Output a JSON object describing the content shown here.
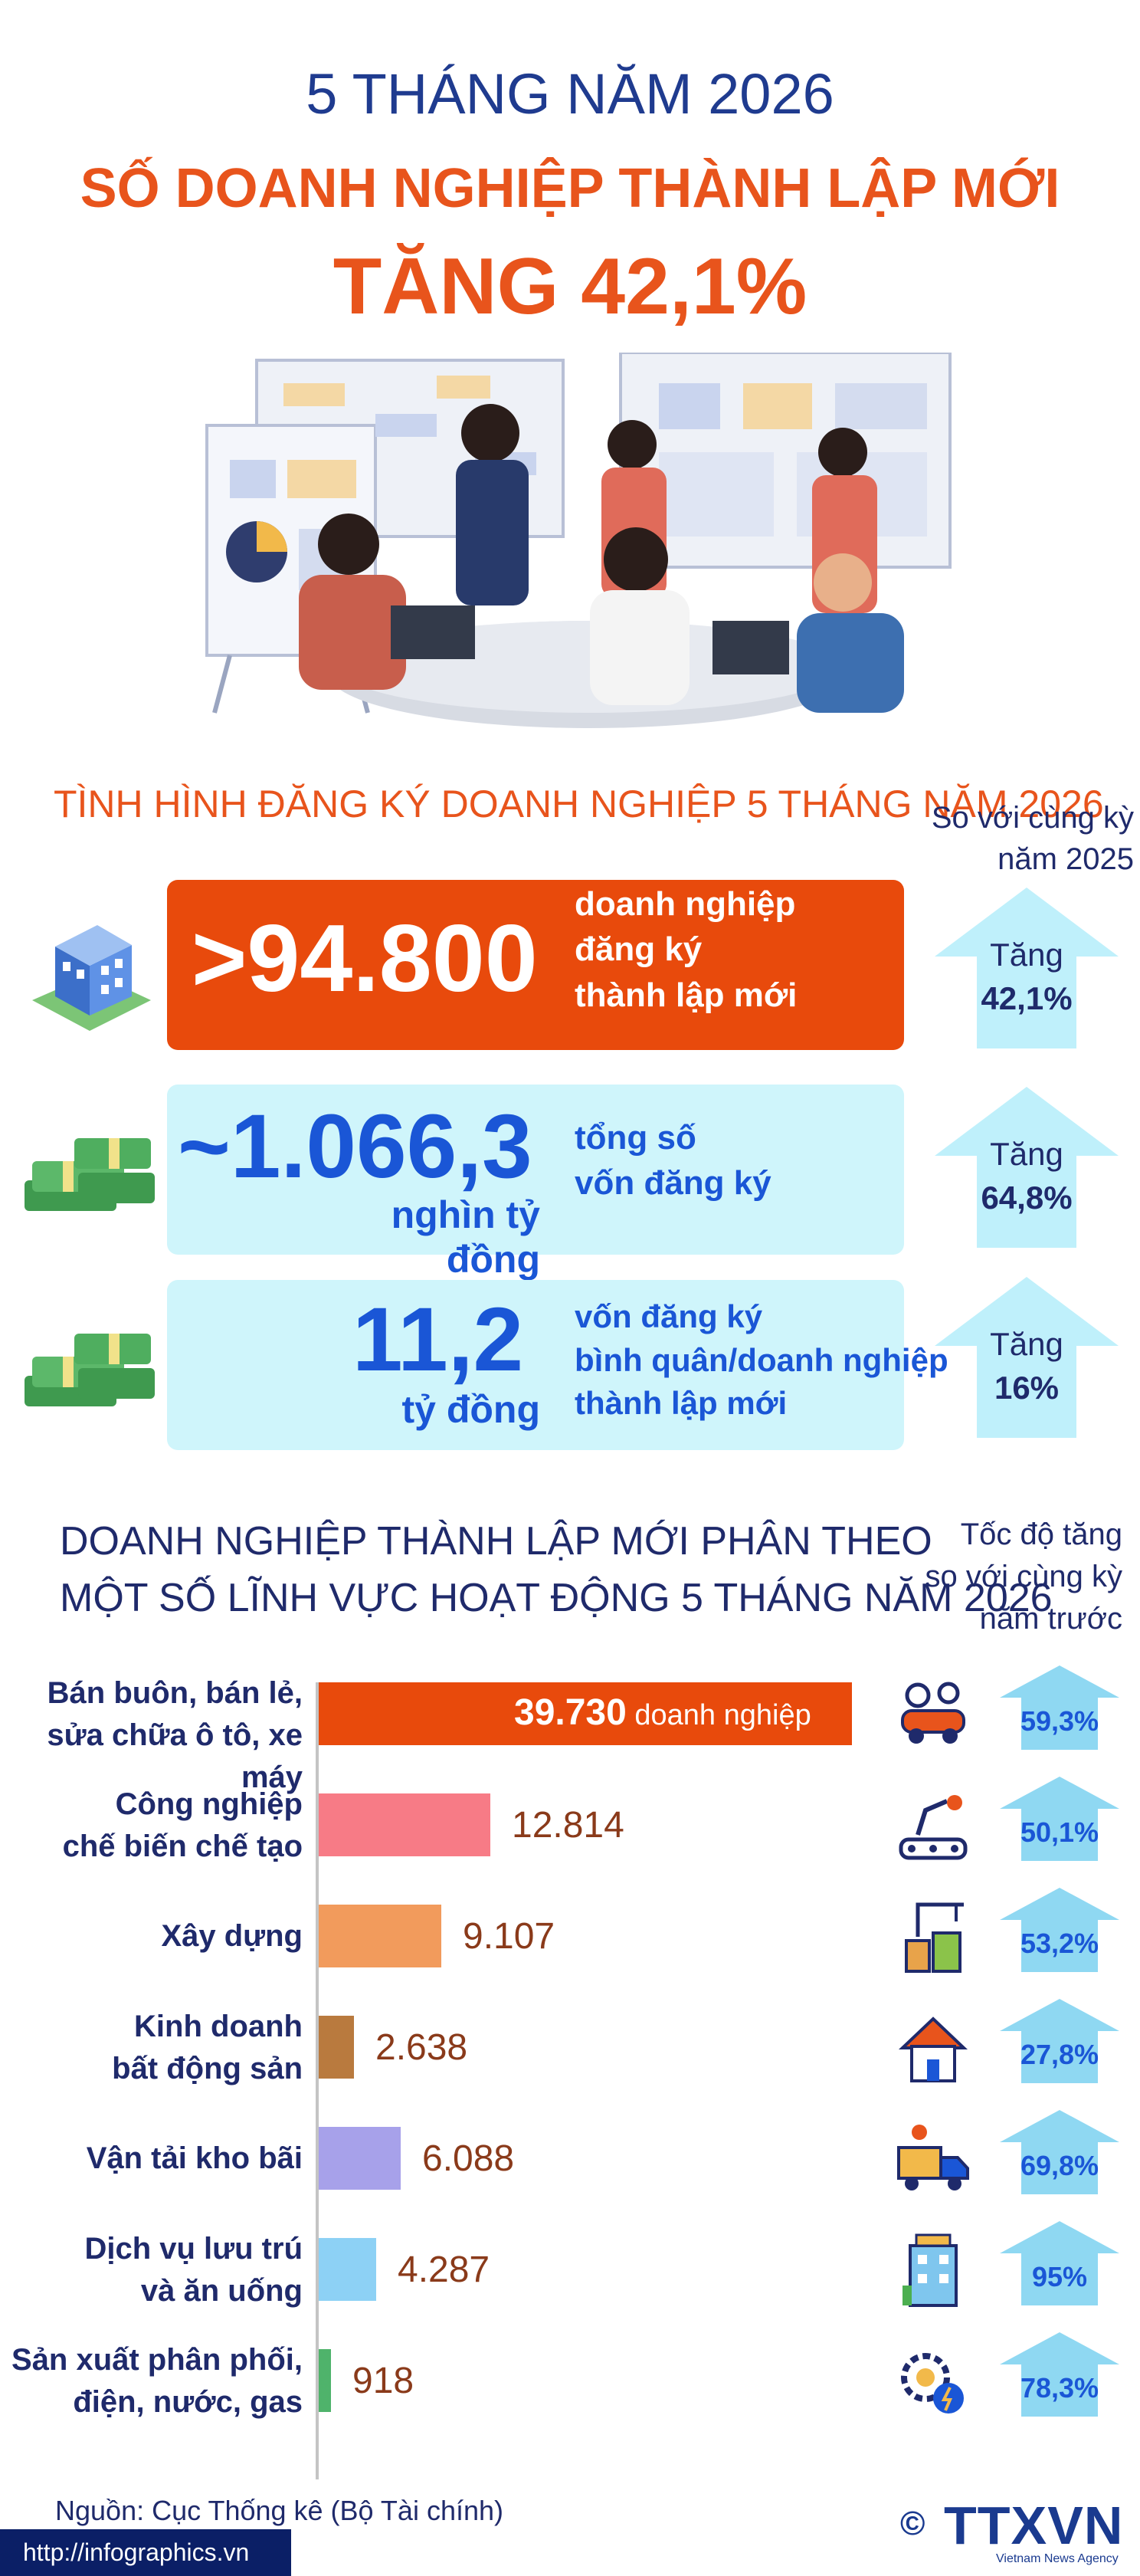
{
  "header": {
    "period": "5 THÁNG NĂM 2026",
    "title": "SỐ DOANH NGHIỆP THÀNH LẬP MỚI",
    "increase": "TĂNG 42,1%"
  },
  "registration": {
    "title": "TÌNH HÌNH ĐĂNG KÝ DOANH NGHIỆP 5 THÁNG NĂM 2026",
    "compare_line1": "So với cùng kỳ",
    "compare_line2": "năm 2025",
    "stats": [
      {
        "value": ">94.800",
        "unit": "",
        "desc": [
          "doanh nghiệp",
          "đăng ký",
          "thành lập mới"
        ],
        "change_label": "Tăng",
        "change_value": "42,1%"
      },
      {
        "value": "~1.066,3",
        "unit": "nghìn tỷ đồng",
        "desc": [
          "tổng số",
          "vốn đăng ký"
        ],
        "change_label": "Tăng",
        "change_value": "64,8%"
      },
      {
        "value": "11,2",
        "unit": "tỷ đồng",
        "desc": [
          "vốn đăng ký",
          "bình quân/doanh nghiệp",
          "thành lập mới"
        ],
        "change_label": "Tăng",
        "change_value": "16%"
      }
    ]
  },
  "sectors": {
    "title_line1": "DOANH NGHIỆP THÀNH LẬP MỚI PHÂN THEO",
    "title_line2": "MỘT SỐ LĨNH VỰC HOẠT ĐỘNG 5 THÁNG NĂM 2026",
    "rate_head": [
      "Tốc độ tăng",
      "so với cùng kỳ",
      "năm trước"
    ],
    "unit_suffix": "doanh nghiệp"
  },
  "chart_data": {
    "type": "bar",
    "categories": [
      "Bán buôn, bán lẻ, sửa chữa ô tô, xe máy",
      "Công nghiệp chế biến chế tạo",
      "Xây dựng",
      "Kinh doanh bất động sản",
      "Vận tải kho bãi",
      "Dịch vụ lưu trú và ăn uống",
      "Sản xuất phân phối, điện, nước, gas"
    ],
    "label_lines": [
      [
        "Bán buôn, bán lẻ,",
        "sửa chữa ô tô, xe máy"
      ],
      [
        "Công nghiệp",
        "chế biến chế tạo"
      ],
      [
        "Xây dựng"
      ],
      [
        "Kinh doanh",
        "bất động sản"
      ],
      [
        "Vận tải kho bãi"
      ],
      [
        "Dịch vụ lưu trú",
        "và ăn uống"
      ],
      [
        "Sản xuất phân phối,",
        "điện, nước, gas"
      ]
    ],
    "values": [
      39730,
      12814,
      9107,
      2638,
      6088,
      4287,
      918
    ],
    "value_labels": [
      "39.730",
      "12.814",
      "9.107",
      "2.638",
      "6.088",
      "4.287",
      "918"
    ],
    "growth": [
      "59,3%",
      "50,1%",
      "53,2%",
      "27,8%",
      "69,8%",
      "95%",
      "78,3%"
    ],
    "colors": [
      "#e84a0c",
      "#f77b86",
      "#f29b5c",
      "#b97a3e",
      "#a7a1ea",
      "#8dd1f5",
      "#4fb36b"
    ],
    "icons": [
      "car-repair-icon",
      "factory-robot-icon",
      "construction-crane-icon",
      "real-estate-house-icon",
      "delivery-truck-icon",
      "hotel-icon",
      "energy-gear-icon"
    ]
  },
  "footer": {
    "source": "Nguồn: Cục Thống kê (Bộ Tài chính)",
    "url": "http://infographics.vn",
    "copyright": "©",
    "logo": "TTXVN",
    "logo_sub": "Vietnam News Agency"
  },
  "colors": {
    "accent": "#e8541c",
    "navy": "#1f2a6b",
    "blue": "#1f3b8f",
    "bright_blue": "#1a56d6",
    "light_cyan": "#cff5fb",
    "arrow_cyan": "#bff0fb"
  }
}
